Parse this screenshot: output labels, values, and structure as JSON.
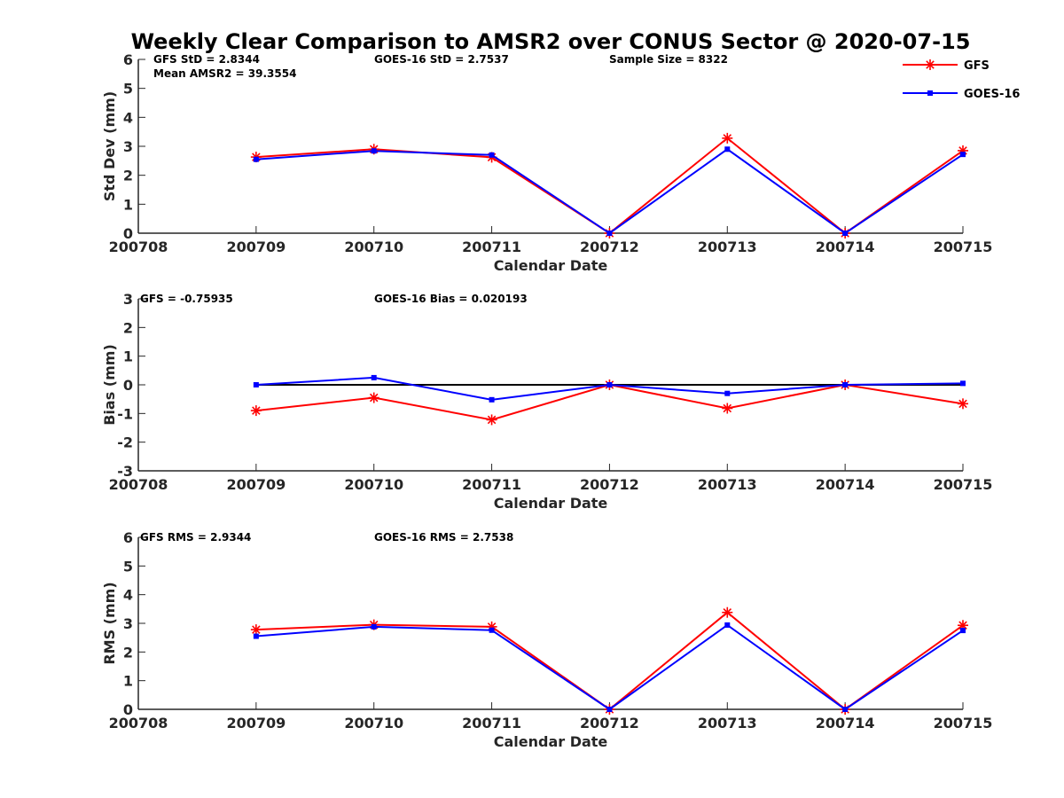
{
  "figure_title": "Weekly Clear Comparison to AMSR2 over CONUS Sector @ 2020-07-15",
  "colors": {
    "GFS": "#ff0000",
    "GOES-16": "#0000ff",
    "zero_line": "#000000",
    "axis": "#262626"
  },
  "chart_data": [
    {
      "type": "line",
      "title": "",
      "xlabel": "Calendar Date",
      "ylabel": "Std Dev (mm)",
      "categories": [
        "200708",
        "200709",
        "200710",
        "200711",
        "200712",
        "200713",
        "200714",
        "200715"
      ],
      "ylim": [
        0,
        6
      ],
      "yticks": [
        0,
        1,
        2,
        3,
        4,
        5,
        6
      ],
      "grid": false,
      "legend": "top-right",
      "annotations": [
        "GFS StD = 2.8344",
        "GOES-16 StD = 2.7537",
        "Sample Size = 8322",
        "Mean AMSR2 = 39.3554"
      ],
      "series": [
        {
          "name": "GFS",
          "marker": "star",
          "values": [
            null,
            2.63,
            2.9,
            2.62,
            0.0,
            3.28,
            0.0,
            2.85
          ]
        },
        {
          "name": "GOES-16",
          "marker": "square",
          "values": [
            null,
            2.55,
            2.84,
            2.7,
            0.0,
            2.9,
            0.0,
            2.72
          ]
        }
      ]
    },
    {
      "type": "line",
      "title": "",
      "xlabel": "Calendar Date",
      "ylabel": "Bias (mm)",
      "categories": [
        "200708",
        "200709",
        "200710",
        "200711",
        "200712",
        "200713",
        "200714",
        "200715"
      ],
      "ylim": [
        -3,
        3
      ],
      "yticks": [
        -3,
        -2,
        -1,
        0,
        1,
        2,
        3
      ],
      "grid": false,
      "zero_line": true,
      "annotations": [
        "GFS = -0.75935",
        "GOES-16 Bias  = 0.020193"
      ],
      "series": [
        {
          "name": "GFS",
          "marker": "star",
          "values": [
            null,
            -0.9,
            -0.45,
            -1.22,
            0.0,
            -0.82,
            0.0,
            -0.66
          ]
        },
        {
          "name": "GOES-16",
          "marker": "square",
          "values": [
            null,
            0.0,
            0.25,
            -0.52,
            0.0,
            -0.3,
            0.0,
            0.05
          ]
        }
      ]
    },
    {
      "type": "line",
      "title": "",
      "xlabel": "Calendar Date",
      "ylabel": "RMS (mm)",
      "categories": [
        "200708",
        "200709",
        "200710",
        "200711",
        "200712",
        "200713",
        "200714",
        "200715"
      ],
      "ylim": [
        0,
        6
      ],
      "yticks": [
        0,
        1,
        2,
        3,
        4,
        5,
        6
      ],
      "grid": false,
      "annotations": [
        "GFS RMS = 2.9344",
        "GOES-16 RMS = 2.7538"
      ],
      "series": [
        {
          "name": "GFS",
          "marker": "star",
          "values": [
            null,
            2.78,
            2.95,
            2.88,
            0.0,
            3.38,
            0.0,
            2.93
          ]
        },
        {
          "name": "GOES-16",
          "marker": "square",
          "values": [
            null,
            2.55,
            2.88,
            2.76,
            0.0,
            2.94,
            0.0,
            2.75
          ]
        }
      ]
    }
  ]
}
